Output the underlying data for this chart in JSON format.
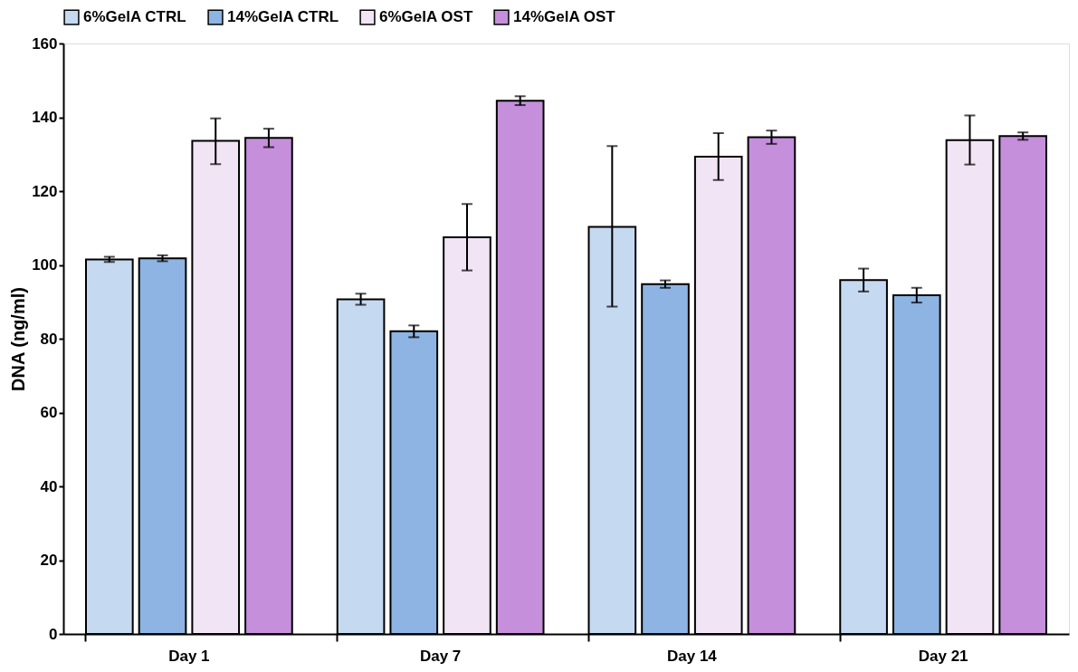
{
  "chart_data": {
    "type": "bar",
    "ylabel": "DNA (ng/ml)",
    "categories": [
      "Day 1",
      "Day 7",
      "Day 14",
      "Day 21"
    ],
    "series": [
      {
        "name": "6%GelA CTRL",
        "color": "#c5d9f1",
        "values": [
          101.5,
          90.7,
          110.3,
          95.9
        ],
        "errors": [
          0.7,
          1.5,
          [
            88.7,
            132.2
          ],
          3.1
        ]
      },
      {
        "name": "14%GelA CTRL",
        "color": "#8db4e2",
        "values": [
          101.8,
          82.0,
          94.8,
          91.8
        ],
        "errors": [
          0.8,
          1.6,
          1.0,
          2.0
        ]
      },
      {
        "name": "6%GelA OST",
        "color": "#f1e4f5",
        "values": [
          133.6,
          107.5,
          129.3,
          133.8
        ],
        "errors": [
          [
            127.3,
            139.7
          ],
          [
            98.5,
            116.5
          ],
          [
            123.0,
            135.7
          ],
          [
            127.2,
            140.5
          ]
        ]
      },
      {
        "name": "14%GelA OST",
        "color": "#c58fdb",
        "values": [
          134.4,
          144.5,
          134.6,
          134.9
        ],
        "errors": [
          2.5,
          1.2,
          1.8,
          1.0
        ]
      }
    ],
    "ylim": [
      0,
      160
    ],
    "yticks": [
      0,
      20,
      40,
      60,
      80,
      100,
      120,
      140,
      160
    ],
    "grid": false,
    "legend": "top"
  }
}
